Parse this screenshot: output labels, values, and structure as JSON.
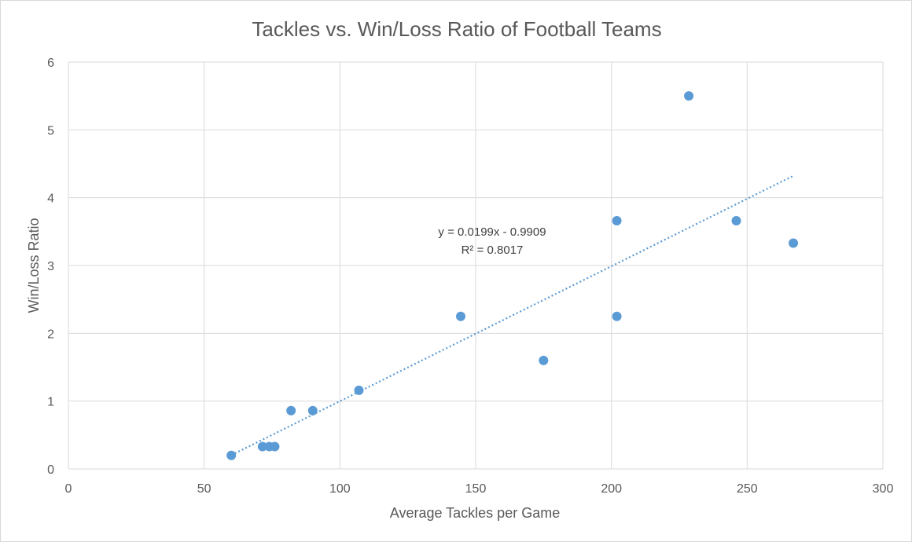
{
  "chart_data": {
    "type": "scatter",
    "title": "Tackles vs. Win/Loss Ratio of Football Teams",
    "xlabel": "Average Tackles per Game",
    "ylabel": "Win/Loss Ratio",
    "xlim": [
      0,
      300
    ],
    "ylim": [
      0,
      6
    ],
    "x_ticks": [
      0,
      50,
      100,
      150,
      200,
      250,
      300
    ],
    "y_ticks": [
      0,
      1,
      2,
      3,
      4,
      5,
      6
    ],
    "grid": true,
    "legend": "none",
    "marker_color": "#5b9bd5",
    "points": [
      {
        "x": 60,
        "y": 0.2
      },
      {
        "x": 71.5,
        "y": 0.33
      },
      {
        "x": 74,
        "y": 0.33
      },
      {
        "x": 76,
        "y": 0.33
      },
      {
        "x": 82,
        "y": 0.86
      },
      {
        "x": 90,
        "y": 0.86
      },
      {
        "x": 107,
        "y": 1.16
      },
      {
        "x": 144.5,
        "y": 2.25
      },
      {
        "x": 175,
        "y": 1.6
      },
      {
        "x": 202,
        "y": 3.66
      },
      {
        "x": 202,
        "y": 2.25
      },
      {
        "x": 228.5,
        "y": 5.5
      },
      {
        "x": 246,
        "y": 3.66
      },
      {
        "x": 267,
        "y": 3.33
      }
    ],
    "trendline": {
      "type": "linear",
      "slope": 0.0199,
      "intercept": -0.9909,
      "x_range": [
        60,
        267
      ],
      "equation_label": "y = 0.0199x - 0.9909",
      "r2_label": "R² = 0.8017"
    }
  }
}
